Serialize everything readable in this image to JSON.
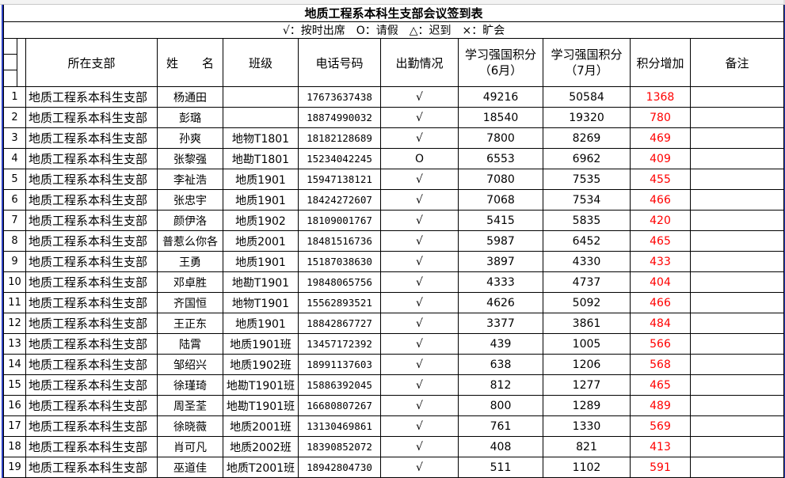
{
  "title": "地质工程系本科生支部会议签到表",
  "legend": "√：按时出席　O：请假　△：迟到　×：旷会",
  "headers": {
    "dept": "所在支部",
    "name": "姓　　名",
    "class": "班级",
    "phone": "电话号码",
    "attendance": "出勤情况",
    "june_line1": "学习强国积分",
    "june_line2": "（6月）",
    "july_line1": "学习强国积分",
    "july_line2": "（7月）",
    "increase": "积分增加",
    "notes": "备注"
  },
  "colors": {
    "increase": "#ff0000",
    "border_accent": "#2b3fbf"
  },
  "rows": [
    {
      "no": "1",
      "dept": "地质工程系本科生支部",
      "name": "杨通田",
      "class": "",
      "phone": "17673637438",
      "attendance": "√",
      "june": "49216",
      "july": "50584",
      "increase": "1368",
      "notes": ""
    },
    {
      "no": "2",
      "dept": "地质工程系本科生支部",
      "name": "彭璐",
      "class": "",
      "phone": "18874990032",
      "attendance": "√",
      "june": "18540",
      "july": "19320",
      "increase": "780",
      "notes": ""
    },
    {
      "no": "3",
      "dept": "地质工程系本科生支部",
      "name": "孙爽",
      "class": "地物T1801",
      "phone": "18182128689",
      "attendance": "√",
      "june": "7800",
      "july": "8269",
      "increase": "469",
      "notes": ""
    },
    {
      "no": "4",
      "dept": "地质工程系本科生支部",
      "name": "张黎强",
      "class": "地勘T1801",
      "phone": "15234042245",
      "attendance": "O",
      "june": "6553",
      "july": "6962",
      "increase": "409",
      "notes": ""
    },
    {
      "no": "5",
      "dept": "地质工程系本科生支部",
      "name": "李祉浩",
      "class": "地质1901",
      "phone": "15947138121",
      "attendance": "√",
      "june": "7080",
      "july": "7535",
      "increase": "455",
      "notes": ""
    },
    {
      "no": "6",
      "dept": "地质工程系本科生支部",
      "name": "张忠宇",
      "class": "地质1901",
      "phone": "18424272607",
      "attendance": "√",
      "june": "7068",
      "july": "7534",
      "increase": "466",
      "notes": ""
    },
    {
      "no": "7",
      "dept": "地质工程系本科生支部",
      "name": "颜伊洛",
      "class": "地质1902",
      "phone": "18109001767",
      "attendance": "√",
      "june": "5415",
      "july": "5835",
      "increase": "420",
      "notes": ""
    },
    {
      "no": "8",
      "dept": "地质工程系本科生支部",
      "name": "普惹么你各",
      "class": "地质2001",
      "phone": "18481516736",
      "attendance": "√",
      "june": "5987",
      "july": "6452",
      "increase": "465",
      "notes": ""
    },
    {
      "no": "9",
      "dept": "地质工程系本科生支部",
      "name": "王勇",
      "class": "地质1901",
      "phone": "15187038630",
      "attendance": "√",
      "june": "3897",
      "july": "4330",
      "increase": "433",
      "notes": ""
    },
    {
      "no": "10",
      "dept": "地质工程系本科生支部",
      "name": "邓卓胜",
      "class": "地勘T1901",
      "phone": "19848065756",
      "attendance": "√",
      "june": "4333",
      "july": "4737",
      "increase": "404",
      "notes": ""
    },
    {
      "no": "11",
      "dept": "地质工程系本科生支部",
      "name": "齐国恒",
      "class": "地物T1901",
      "phone": "15562893521",
      "attendance": "√",
      "june": "4626",
      "july": "5092",
      "increase": "466",
      "notes": ""
    },
    {
      "no": "12",
      "dept": "地质工程系本科生支部",
      "name": "王正东",
      "class": "地质1901",
      "phone": "18842867727",
      "attendance": "√",
      "june": "3377",
      "july": "3861",
      "increase": "484",
      "notes": ""
    },
    {
      "no": "13",
      "dept": "地质工程系本科生支部",
      "name": "陆霄",
      "class": "地质1901班",
      "phone": "13457172392",
      "attendance": "√",
      "june": "439",
      "july": "1005",
      "increase": "566",
      "notes": ""
    },
    {
      "no": "14",
      "dept": "地质工程系本科生支部",
      "name": "邹绍兴",
      "class": "地质1902班",
      "phone": "18991137603",
      "attendance": "√",
      "june": "638",
      "july": "1206",
      "increase": "568",
      "notes": ""
    },
    {
      "no": "15",
      "dept": "地质工程系本科生支部",
      "name": "徐瑾琦",
      "class": "地勘T1901班",
      "phone": "15886392045",
      "attendance": "√",
      "june": "812",
      "july": "1277",
      "increase": "465",
      "notes": ""
    },
    {
      "no": "16",
      "dept": "地质工程系本科生支部",
      "name": "周圣荃",
      "class": "地勘T1901班",
      "phone": "16680807267",
      "attendance": "√",
      "june": "800",
      "july": "1289",
      "increase": "489",
      "notes": ""
    },
    {
      "no": "17",
      "dept": "地质工程系本科生支部",
      "name": "徐晓薇",
      "class": "地质2001班",
      "phone": "13130469861",
      "attendance": "√",
      "june": "761",
      "july": "1330",
      "increase": "569",
      "notes": ""
    },
    {
      "no": "18",
      "dept": "地质工程系本科生支部",
      "name": "肖可凡",
      "class": "地质2002班",
      "phone": "18390852072",
      "attendance": "√",
      "june": "408",
      "july": "821",
      "increase": "413",
      "notes": ""
    },
    {
      "no": "19",
      "dept": "地质工程系本科生支部",
      "name": "巫道佳",
      "class": "地质T2001班",
      "phone": "18942804730",
      "attendance": "√",
      "june": "511",
      "july": "1102",
      "increase": "591",
      "notes": ""
    }
  ]
}
